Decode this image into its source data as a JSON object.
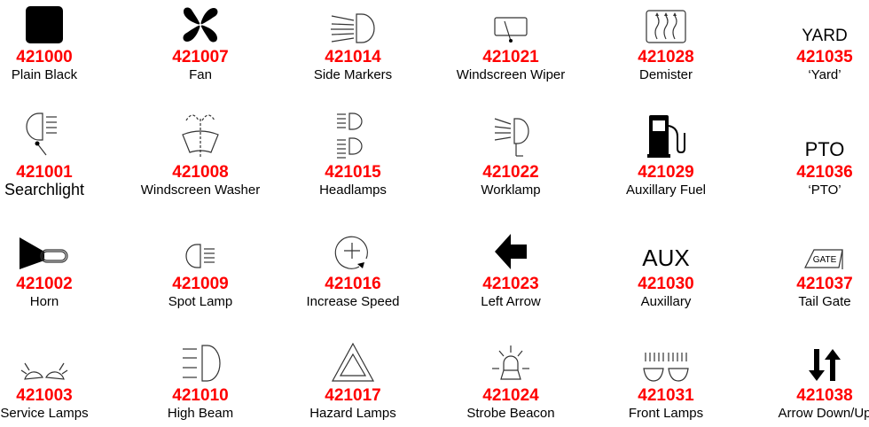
{
  "columns": [
    [
      {
        "code": "421000",
        "label": "Plain Black",
        "icon": "plain-black-square-icon"
      },
      {
        "code": "421001",
        "label": "Searchlight",
        "icon": "searchlight-icon"
      },
      {
        "code": "421002",
        "label": "Horn",
        "icon": "horn-icon"
      },
      {
        "code": "421003",
        "label": "Service Lamps",
        "icon": "service-lamps-icon"
      }
    ],
    [
      {
        "code": "421007",
        "label": "Fan",
        "icon": "fan-icon"
      },
      {
        "code": "421008",
        "label": "Windscreen Washer",
        "icon": "windscreen-washer-icon"
      },
      {
        "code": "421009",
        "label": "Spot Lamp",
        "icon": "spot-lamp-icon"
      },
      {
        "code": "421010",
        "label": "High Beam",
        "icon": "high-beam-icon"
      }
    ],
    [
      {
        "code": "421014",
        "label": "Side Markers",
        "icon": "side-markers-icon"
      },
      {
        "code": "421015",
        "label": "Headlamps",
        "icon": "headlamps-icon"
      },
      {
        "code": "421016",
        "label": "Increase Speed",
        "icon": "increase-speed-icon"
      },
      {
        "code": "421017",
        "label": "Hazard Lamps",
        "icon": "hazard-triangle-icon"
      }
    ],
    [
      {
        "code": "421021",
        "label": "Windscreen Wiper",
        "icon": "windscreen-wiper-icon"
      },
      {
        "code": "421022",
        "label": "Worklamp",
        "icon": "worklamp-icon"
      },
      {
        "code": "421023",
        "label": "Left Arrow",
        "icon": "left-arrow-icon"
      },
      {
        "code": "421024",
        "label": "Strobe Beacon",
        "icon": "strobe-beacon-icon"
      }
    ],
    [
      {
        "code": "421028",
        "label": "Demister",
        "icon": "demister-icon"
      },
      {
        "code": "421029",
        "label": "Auxillary Fuel",
        "icon": "fuel-pump-icon"
      },
      {
        "code": "421030",
        "label": "Auxillary",
        "icon": "aux-text-icon",
        "icon_text": "AUX"
      },
      {
        "code": "421031",
        "label": "Front Lamps",
        "icon": "front-lamps-icon"
      }
    ],
    [
      {
        "code": "421035",
        "label": "‘Yard’",
        "icon": "yard-text-icon",
        "icon_text": "YARD"
      },
      {
        "code": "421036",
        "label": "‘PTO’",
        "icon": "pto-text-icon",
        "icon_text": "PTO"
      },
      {
        "code": "421037",
        "label": "Tail Gate",
        "icon": "tail-gate-icon",
        "icon_text": "GATE"
      },
      {
        "code": "421038",
        "label": "Arrow Down/Up",
        "icon": "arrow-down-up-icon"
      }
    ]
  ]
}
